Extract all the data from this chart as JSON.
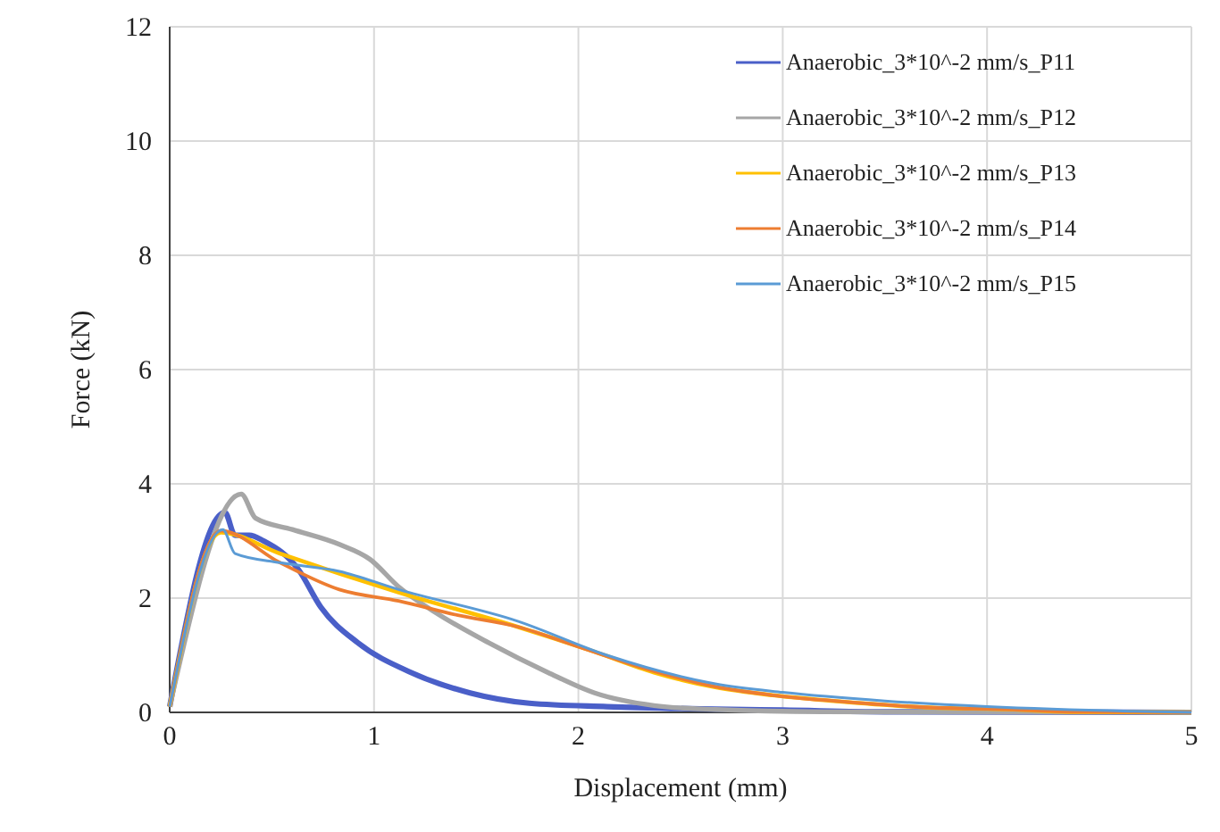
{
  "chart_data": {
    "type": "line",
    "xlabel": "Displacement (mm)",
    "ylabel": "Force (kN)",
    "xlim": [
      0,
      5
    ],
    "ylim": [
      0,
      12
    ],
    "xticks": [
      0,
      1,
      2,
      3,
      4,
      5
    ],
    "yticks": [
      0,
      2,
      4,
      6,
      8,
      10,
      12
    ],
    "grid": true,
    "legend": "top right",
    "marker": "none",
    "line_style": "solid",
    "series": [
      {
        "name": "Anaerobic_3*10^-2 mm/s_P11",
        "color": "#4a5fc8",
        "x": [
          0,
          0.27,
          0.32,
          0.39,
          0.46,
          0.63,
          0.74,
          0.92,
          1.18,
          1.47,
          1.76,
          2.14,
          2.6,
          3.0,
          3.5,
          5
        ],
        "values": [
          0.1,
          3.5,
          3.1,
          3.1,
          3.0,
          2.5,
          1.84,
          1.22,
          0.7,
          0.34,
          0.16,
          0.1,
          0.06,
          0.04,
          0.01,
          0
        ]
      },
      {
        "name": "Anaerobic_3*10^-2 mm/s_P12",
        "color": "#a6a6a6",
        "x": [
          0,
          0.35,
          0.42,
          0.6,
          0.83,
          0.98,
          1.12,
          1.3,
          1.56,
          1.85,
          2.08,
          2.37,
          2.67,
          3.2,
          5
        ],
        "values": [
          0.1,
          3.82,
          3.4,
          3.2,
          2.94,
          2.68,
          2.2,
          1.75,
          1.22,
          0.7,
          0.34,
          0.12,
          0.05,
          0.01,
          0
        ]
      },
      {
        "name": "Anaerobic_3*10^-2 mm/s_P13",
        "color": "#ffc000",
        "x": [
          0,
          0.25,
          0.54,
          1.12,
          1.7,
          2.08,
          2.37,
          2.67,
          2.95,
          3.25,
          3.69,
          4.13,
          4.4,
          5
        ],
        "values": [
          0.1,
          3.15,
          2.78,
          2.1,
          1.5,
          1.06,
          0.7,
          0.44,
          0.3,
          0.2,
          0.09,
          0.05,
          0.01,
          0
        ]
      },
      {
        "name": "Anaerobic_3*10^-2 mm/s_P14",
        "color": "#ed7d31",
        "x": [
          0,
          0.25,
          0.54,
          0.83,
          1.12,
          1.41,
          1.7,
          2.0,
          2.37,
          2.67,
          2.95,
          3.25,
          3.69,
          4.13,
          4.4,
          5
        ],
        "values": [
          0.1,
          3.18,
          2.62,
          2.15,
          1.95,
          1.7,
          1.5,
          1.15,
          0.72,
          0.45,
          0.3,
          0.2,
          0.09,
          0.05,
          0.01,
          0
        ]
      },
      {
        "name": "Anaerobic_3*10^-2 mm/s_P15",
        "color": "#5b9bd5",
        "x": [
          0,
          0.26,
          0.32,
          0.54,
          0.83,
          1.12,
          1.7,
          2.14,
          2.67,
          3.0,
          3.5,
          4.0,
          4.7,
          5
        ],
        "values": [
          0.1,
          3.2,
          2.78,
          2.62,
          2.47,
          2.15,
          1.6,
          1.0,
          0.5,
          0.35,
          0.2,
          0.1,
          0.02,
          0
        ]
      }
    ]
  }
}
